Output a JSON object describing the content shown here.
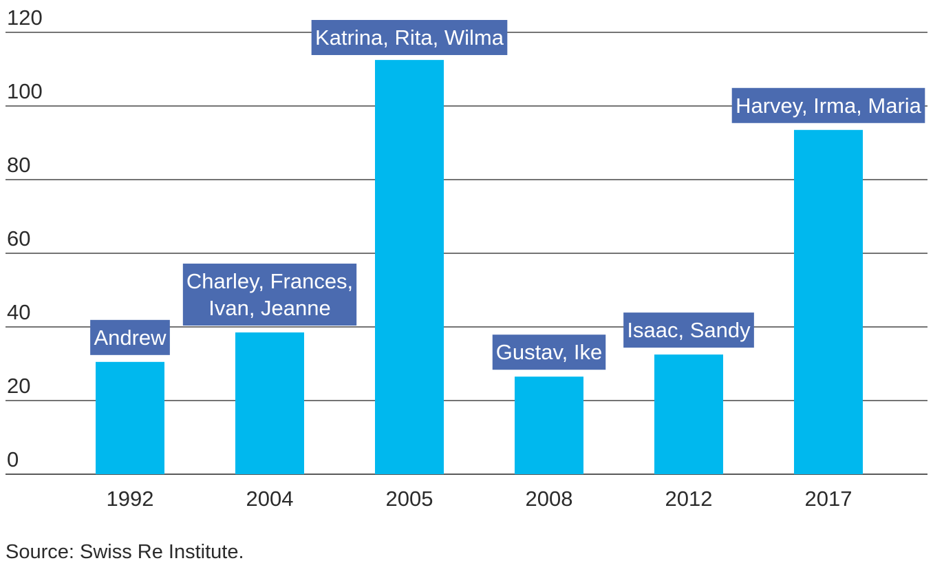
{
  "chart_data": {
    "type": "bar",
    "categories": [
      "1992",
      "2004",
      "2005",
      "2008",
      "2012",
      "2017"
    ],
    "values": [
      30.5,
      38.5,
      112.5,
      26.5,
      32.5,
      93.5
    ],
    "annotations": [
      [
        "Andrew"
      ],
      [
        "Charley, Frances,",
        "Ivan, Jeanne"
      ],
      [
        "Katrina, Rita, Wilma"
      ],
      [
        "Gustav, Ike"
      ],
      [
        "Isaac, Sandy"
      ],
      [
        "Harvey, Irma, Maria"
      ]
    ],
    "ylim": [
      0,
      120
    ],
    "yticks": [
      "0",
      "20",
      "40",
      "60",
      "80",
      "100",
      "120"
    ],
    "grid": true,
    "colors": {
      "bar": "#00B8EE",
      "annotation_bg": "#4B6BB0",
      "annotation_text": "#ffffff",
      "grid": "#222222"
    }
  },
  "source": "Source: Swiss Re Institute."
}
